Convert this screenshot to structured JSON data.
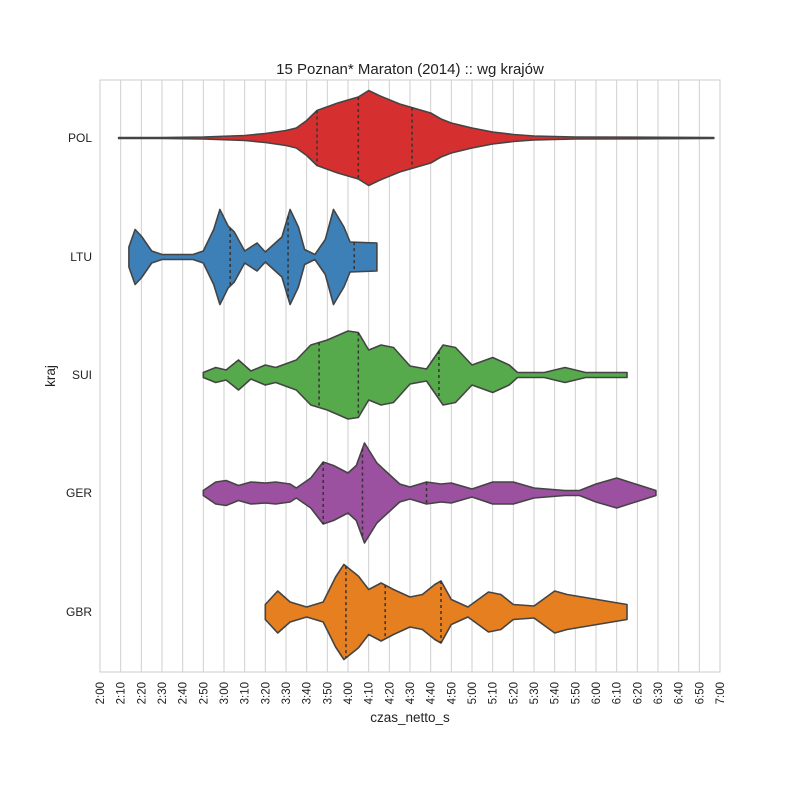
{
  "chart_data": {
    "type": "violin",
    "title": "15 Poznan* Maraton (2014) :: wg krajów",
    "xlabel": "czas_netto_s",
    "ylabel": "kraj",
    "xlim_minutes": [
      120,
      420
    ],
    "x_tick_labels": [
      "2:00",
      "2:10",
      "2:20",
      "2:30",
      "2:40",
      "2:50",
      "3:00",
      "3:10",
      "3:20",
      "3:30",
      "3:40",
      "3:50",
      "4:00",
      "4:10",
      "4:20",
      "4:30",
      "4:40",
      "4:50",
      "5:00",
      "5:10",
      "5:20",
      "5:30",
      "5:40",
      "5:50",
      "6:00",
      "6:10",
      "6:20",
      "6:30",
      "6:40",
      "6:50",
      "7:00"
    ],
    "grid": "vertical",
    "categories": [
      "POL",
      "LTU",
      "SUI",
      "GER",
      "GBR"
    ],
    "series": [
      {
        "label": "POL",
        "color": "#d62f2f",
        "range": [
          129,
          417
        ],
        "quartiles": [
          225,
          245,
          271
        ],
        "density": [
          [
            129,
            0.01
          ],
          [
            150,
            0.01
          ],
          [
            170,
            0.02
          ],
          [
            190,
            0.05
          ],
          [
            200,
            0.09
          ],
          [
            210,
            0.15
          ],
          [
            215,
            0.2
          ],
          [
            220,
            0.35
          ],
          [
            225,
            0.55
          ],
          [
            235,
            0.7
          ],
          [
            245,
            0.82
          ],
          [
            250,
            0.95
          ],
          [
            255,
            0.85
          ],
          [
            265,
            0.68
          ],
          [
            270,
            0.62
          ],
          [
            280,
            0.5
          ],
          [
            285,
            0.38
          ],
          [
            290,
            0.3
          ],
          [
            300,
            0.2
          ],
          [
            310,
            0.12
          ],
          [
            320,
            0.07
          ],
          [
            330,
            0.04
          ],
          [
            350,
            0.02
          ],
          [
            417,
            0.01
          ]
        ]
      },
      {
        "label": "LTU",
        "color": "#3d7fb7",
        "range": [
          134,
          254
        ],
        "quartiles": [
          183,
          211,
          243
        ],
        "density": [
          [
            134,
            0.2
          ],
          [
            137,
            0.55
          ],
          [
            140,
            0.42
          ],
          [
            145,
            0.12
          ],
          [
            150,
            0.05
          ],
          [
            165,
            0.05
          ],
          [
            170,
            0.12
          ],
          [
            175,
            0.55
          ],
          [
            178,
            0.95
          ],
          [
            182,
            0.62
          ],
          [
            185,
            0.5
          ],
          [
            190,
            0.12
          ],
          [
            196,
            0.28
          ],
          [
            200,
            0.1
          ],
          [
            208,
            0.4
          ],
          [
            212,
            0.95
          ],
          [
            216,
            0.6
          ],
          [
            219,
            0.15
          ],
          [
            224,
            0.05
          ],
          [
            229,
            0.35
          ],
          [
            233,
            0.95
          ],
          [
            238,
            0.6
          ],
          [
            241,
            0.3
          ],
          [
            254,
            0.28
          ]
        ]
      },
      {
        "label": "SUI",
        "color": "#56aa4c",
        "range": [
          170,
          375
        ],
        "quartiles": [
          226,
          245,
          284
        ],
        "density": [
          [
            170,
            0.05
          ],
          [
            176,
            0.15
          ],
          [
            181,
            0.1
          ],
          [
            187,
            0.3
          ],
          [
            193,
            0.08
          ],
          [
            200,
            0.2
          ],
          [
            205,
            0.15
          ],
          [
            215,
            0.3
          ],
          [
            222,
            0.6
          ],
          [
            230,
            0.7
          ],
          [
            240,
            0.88
          ],
          [
            245,
            0.85
          ],
          [
            250,
            0.5
          ],
          [
            256,
            0.6
          ],
          [
            262,
            0.55
          ],
          [
            270,
            0.18
          ],
          [
            278,
            0.12
          ],
          [
            286,
            0.6
          ],
          [
            292,
            0.55
          ],
          [
            300,
            0.2
          ],
          [
            310,
            0.35
          ],
          [
            318,
            0.2
          ],
          [
            322,
            0.05
          ],
          [
            335,
            0.05
          ],
          [
            345,
            0.15
          ],
          [
            355,
            0.05
          ],
          [
            375,
            0.05
          ]
        ]
      },
      {
        "label": "GER",
        "color": "#9b50a0",
        "range": [
          170,
          389
        ],
        "quartiles": [
          228,
          247,
          278
        ],
        "density": [
          [
            170,
            0.05
          ],
          [
            176,
            0.22
          ],
          [
            181,
            0.25
          ],
          [
            187,
            0.15
          ],
          [
            193,
            0.22
          ],
          [
            200,
            0.2
          ],
          [
            205,
            0.22
          ],
          [
            212,
            0.18
          ],
          [
            215,
            0.1
          ],
          [
            222,
            0.3
          ],
          [
            228,
            0.62
          ],
          [
            233,
            0.55
          ],
          [
            240,
            0.4
          ],
          [
            244,
            0.55
          ],
          [
            248,
            1.0
          ],
          [
            254,
            0.6
          ],
          [
            265,
            0.18
          ],
          [
            270,
            0.12
          ],
          [
            278,
            0.22
          ],
          [
            285,
            0.18
          ],
          [
            290,
            0.2
          ],
          [
            300,
            0.08
          ],
          [
            310,
            0.22
          ],
          [
            320,
            0.22
          ],
          [
            330,
            0.1
          ],
          [
            345,
            0.05
          ],
          [
            352,
            0.05
          ],
          [
            360,
            0.18
          ],
          [
            370,
            0.3
          ],
          [
            389,
            0.05
          ]
        ]
      },
      {
        "label": "GBR",
        "color": "#e57f20",
        "range": [
          200,
          375
        ],
        "quartiles": [
          239,
          258,
          285
        ],
        "density": [
          [
            200,
            0.15
          ],
          [
            206,
            0.42
          ],
          [
            212,
            0.2
          ],
          [
            220,
            0.1
          ],
          [
            228,
            0.2
          ],
          [
            234,
            0.7
          ],
          [
            238,
            0.95
          ],
          [
            245,
            0.72
          ],
          [
            250,
            0.45
          ],
          [
            256,
            0.58
          ],
          [
            262,
            0.45
          ],
          [
            270,
            0.3
          ],
          [
            276,
            0.35
          ],
          [
            282,
            0.55
          ],
          [
            285,
            0.62
          ],
          [
            290,
            0.25
          ],
          [
            298,
            0.1
          ],
          [
            308,
            0.4
          ],
          [
            314,
            0.35
          ],
          [
            320,
            0.15
          ],
          [
            330,
            0.12
          ],
          [
            340,
            0.42
          ],
          [
            346,
            0.35
          ],
          [
            375,
            0.15
          ]
        ]
      }
    ]
  }
}
